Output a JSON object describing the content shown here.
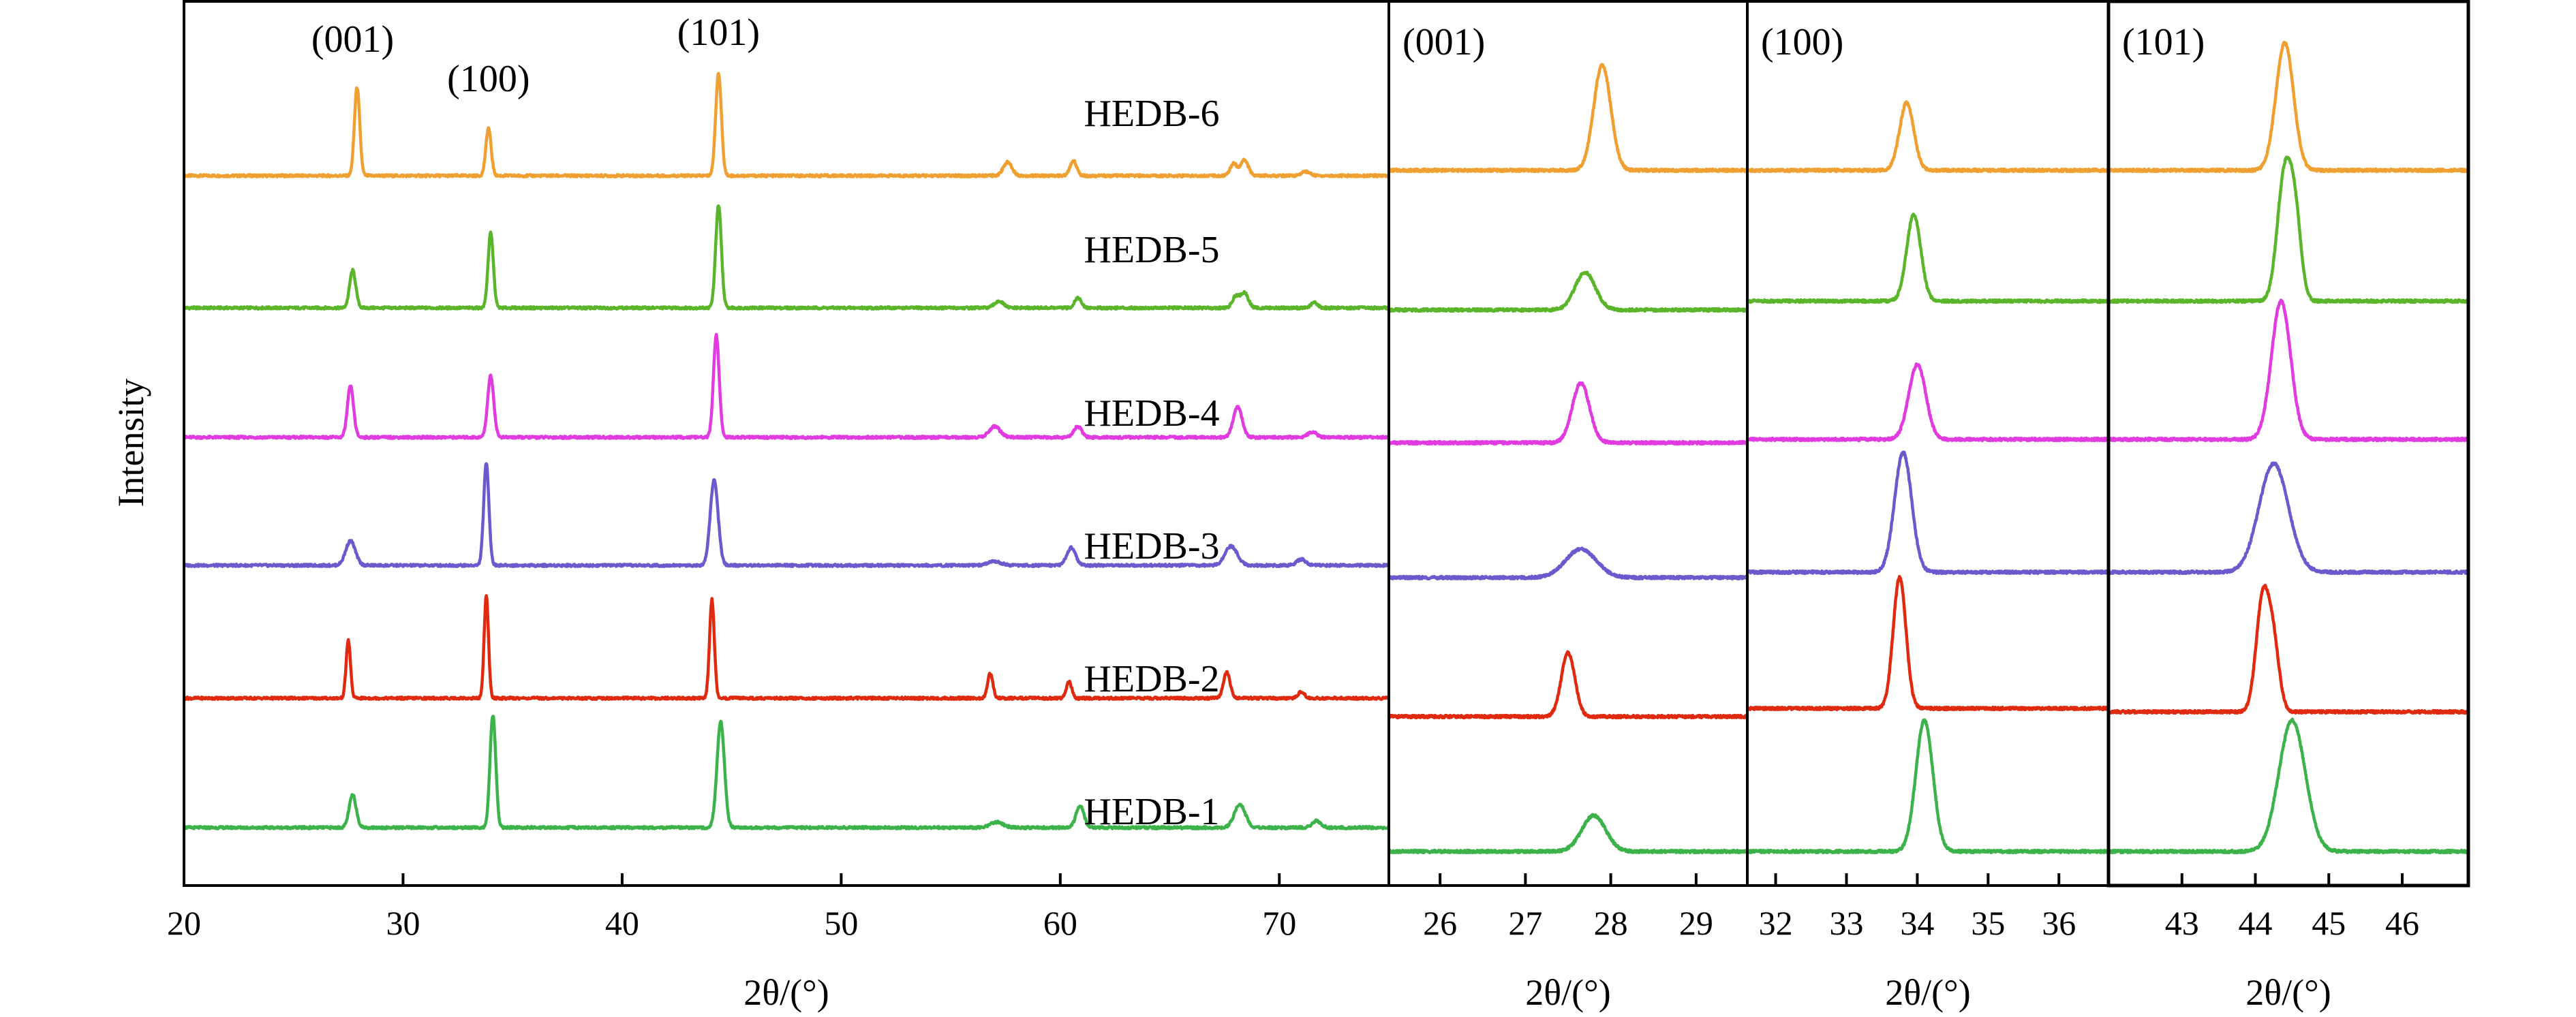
{
  "chart_data": [
    {
      "type": "line",
      "panel": "full",
      "xlabel": "2θ/(°)",
      "ylabel": "Intensity",
      "xlim": [
        20,
        75
      ],
      "xticks": [
        20,
        30,
        40,
        50,
        60,
        70
      ],
      "grid": false,
      "peak_labels": [
        {
          "text": "(001)",
          "x": 27.7
        },
        {
          "text": "(100)",
          "x": 33.9
        },
        {
          "text": "(101)",
          "x": 44.4
        }
      ],
      "series": [
        {
          "name": "HEDB-6",
          "color": "#F0A030",
          "peaks": [
            {
              "x": 27.9,
              "h": 13,
              "w": 0.12
            },
            {
              "x": 33.9,
              "h": 7,
              "w": 0.12
            },
            {
              "x": 44.4,
              "h": 15,
              "w": 0.13
            },
            {
              "x": 57.6,
              "h": 2,
              "w": 0.2
            },
            {
              "x": 60.6,
              "h": 2.2,
              "w": 0.15
            },
            {
              "x": 67.9,
              "h": 1.8,
              "w": 0.15
            },
            {
              "x": 68.4,
              "h": 2.3,
              "w": 0.18
            },
            {
              "x": 71.2,
              "h": 0.6,
              "w": 0.2
            }
          ]
        },
        {
          "name": "HEDB-5",
          "color": "#5AB52A",
          "peaks": [
            {
              "x": 27.7,
              "h": 5.5,
              "w": 0.14
            },
            {
              "x": 34.0,
              "h": 11,
              "w": 0.12
            },
            {
              "x": 44.4,
              "h": 15,
              "w": 0.13
            },
            {
              "x": 57.2,
              "h": 1,
              "w": 0.2
            },
            {
              "x": 60.8,
              "h": 1.5,
              "w": 0.15
            },
            {
              "x": 68.0,
              "h": 1.6,
              "w": 0.15
            },
            {
              "x": 68.4,
              "h": 2.2,
              "w": 0.18
            },
            {
              "x": 71.6,
              "h": 0.8,
              "w": 0.15
            }
          ]
        },
        {
          "name": "HEDB-4",
          "color": "#E03AE0",
          "peaks": [
            {
              "x": 27.6,
              "h": 7.5,
              "w": 0.14
            },
            {
              "x": 34.0,
              "h": 9,
              "w": 0.14
            },
            {
              "x": 44.3,
              "h": 15,
              "w": 0.13
            },
            {
              "x": 57.0,
              "h": 1.6,
              "w": 0.25
            },
            {
              "x": 60.8,
              "h": 1.6,
              "w": 0.18
            },
            {
              "x": 68.1,
              "h": 4.5,
              "w": 0.2
            },
            {
              "x": 71.5,
              "h": 0.8,
              "w": 0.2
            }
          ]
        },
        {
          "name": "HEDB-3",
          "color": "#6A5ACD",
          "peaks": [
            {
              "x": 27.6,
              "h": 3.6,
              "w": 0.22
            },
            {
              "x": 33.8,
              "h": 15,
              "w": 0.12
            },
            {
              "x": 44.2,
              "h": 12.5,
              "w": 0.18
            },
            {
              "x": 57.0,
              "h": 0.6,
              "w": 0.3
            },
            {
              "x": 60.5,
              "h": 2.6,
              "w": 0.2
            },
            {
              "x": 67.8,
              "h": 2.8,
              "w": 0.28
            },
            {
              "x": 71.0,
              "h": 0.9,
              "w": 0.2
            }
          ]
        },
        {
          "name": "HEDB-2",
          "color": "#E02A10",
          "peaks": [
            {
              "x": 27.5,
              "h": 8.5,
              "w": 0.1
            },
            {
              "x": 33.8,
              "h": 15,
              "w": 0.1
            },
            {
              "x": 44.1,
              "h": 14.5,
              "w": 0.11
            },
            {
              "x": 56.8,
              "h": 3.6,
              "w": 0.12
            },
            {
              "x": 60.4,
              "h": 2.4,
              "w": 0.12
            },
            {
              "x": 67.6,
              "h": 3.8,
              "w": 0.15
            },
            {
              "x": 71.0,
              "h": 0.9,
              "w": 0.15
            }
          ]
        },
        {
          "name": "HEDB-1",
          "color": "#3CB34A",
          "peaks": [
            {
              "x": 27.7,
              "h": 4.8,
              "w": 0.16
            },
            {
              "x": 34.1,
              "h": 16.5,
              "w": 0.13
            },
            {
              "x": 44.5,
              "h": 15.5,
              "w": 0.17
            },
            {
              "x": 57.1,
              "h": 0.8,
              "w": 0.3
            },
            {
              "x": 60.9,
              "h": 3.2,
              "w": 0.18
            },
            {
              "x": 68.2,
              "h": 3.4,
              "w": 0.25
            },
            {
              "x": 71.7,
              "h": 1.0,
              "w": 0.2
            }
          ]
        }
      ]
    },
    {
      "type": "line",
      "panel": "zoom",
      "title": "(001)",
      "xlabel": "2θ/(°)",
      "xlim": [
        25.4,
        29.6
      ],
      "xticks": [
        26,
        27,
        28,
        29
      ],
      "series": [
        {
          "name": "HEDB-6",
          "peaks": [
            {
              "x": 27.9,
              "h": 14,
              "w": 0.1
            }
          ]
        },
        {
          "name": "HEDB-5",
          "peaks": [
            {
              "x": 27.7,
              "h": 5,
              "w": 0.12
            }
          ]
        },
        {
          "name": "HEDB-4",
          "peaks": [
            {
              "x": 27.65,
              "h": 8,
              "w": 0.1
            }
          ]
        },
        {
          "name": "HEDB-3",
          "peaks": [
            {
              "x": 27.65,
              "h": 3.8,
              "w": 0.18
            }
          ]
        },
        {
          "name": "HEDB-2",
          "peaks": [
            {
              "x": 27.5,
              "h": 8.5,
              "w": 0.08
            }
          ]
        },
        {
          "name": "HEDB-1",
          "peaks": [
            {
              "x": 27.8,
              "h": 4.8,
              "w": 0.14
            }
          ]
        }
      ]
    },
    {
      "type": "line",
      "panel": "zoom",
      "title": "(100)",
      "xlabel": "2θ/(°)",
      "xlim": [
        31.6,
        36.7
      ],
      "xticks": [
        32,
        33,
        34,
        35,
        36
      ],
      "series": [
        {
          "name": "HEDB-6",
          "peaks": [
            {
              "x": 33.85,
              "h": 9,
              "w": 0.1
            }
          ]
        },
        {
          "name": "HEDB-5",
          "peaks": [
            {
              "x": 33.95,
              "h": 11.5,
              "w": 0.1
            }
          ]
        },
        {
          "name": "HEDB-4",
          "peaks": [
            {
              "x": 34.0,
              "h": 10,
              "w": 0.12
            }
          ]
        },
        {
          "name": "HEDB-3",
          "peaks": [
            {
              "x": 33.8,
              "h": 16,
              "w": 0.12
            }
          ]
        },
        {
          "name": "HEDB-2",
          "peaks": [
            {
              "x": 33.75,
              "h": 17.5,
              "w": 0.09
            }
          ]
        },
        {
          "name": "HEDB-1",
          "peaks": [
            {
              "x": 34.1,
              "h": 17.5,
              "w": 0.12
            }
          ]
        }
      ]
    },
    {
      "type": "line",
      "panel": "zoom",
      "title": "(101)",
      "xlabel": "2θ/(°)",
      "xlim": [
        42.0,
        46.9
      ],
      "xticks": [
        43,
        44,
        45,
        46
      ],
      "series": [
        {
          "name": "HEDB-6",
          "peaks": [
            {
              "x": 44.4,
              "h": 17,
              "w": 0.12
            }
          ]
        },
        {
          "name": "HEDB-5",
          "peaks": [
            {
              "x": 44.4,
              "h": 17,
              "w": 0.1
            },
            {
              "x": 44.55,
              "h": 9,
              "w": 0.08
            }
          ]
        },
        {
          "name": "HEDB-4",
          "peaks": [
            {
              "x": 44.35,
              "h": 18.5,
              "w": 0.13
            }
          ]
        },
        {
          "name": "HEDB-3",
          "peaks": [
            {
              "x": 44.25,
              "h": 14.5,
              "w": 0.2
            }
          ]
        },
        {
          "name": "HEDB-2",
          "peaks": [
            {
              "x": 44.1,
              "h": 15,
              "w": 0.09
            },
            {
              "x": 44.25,
              "h": 8,
              "w": 0.08
            }
          ]
        },
        {
          "name": "HEDB-1",
          "peaks": [
            {
              "x": 44.5,
              "h": 17.5,
              "w": 0.18
            }
          ]
        }
      ]
    }
  ],
  "colors": {
    "HEDB-6": "#F0A030",
    "HEDB-5": "#5AB52A",
    "HEDB-4": "#E03AE0",
    "HEDB-3": "#6A5ACD",
    "HEDB-2": "#E02A10",
    "HEDB-1": "#3CB34A"
  }
}
